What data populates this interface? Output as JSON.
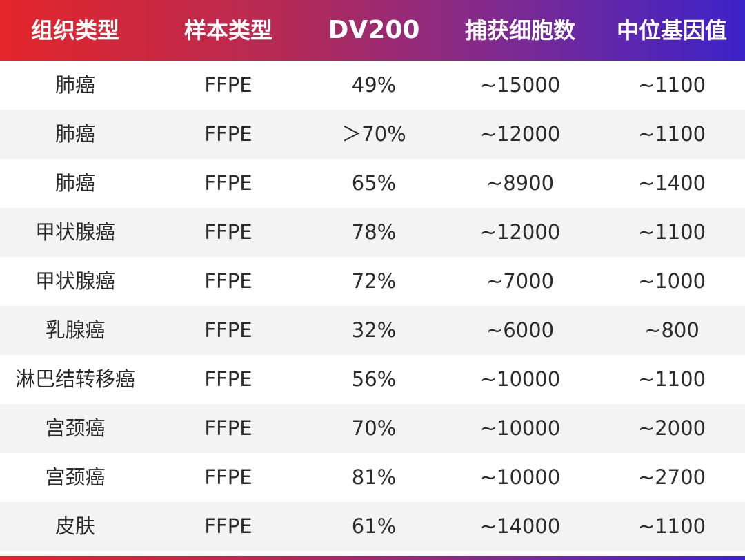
{
  "header": [
    "组织类型",
    "样本类型",
    "DV200",
    "捕获细胞数",
    "中位基因值"
  ],
  "rows": [
    [
      "肺癌",
      "FFPE",
      "49%",
      "~15000",
      "~1100"
    ],
    [
      "肺癌",
      "FFPE",
      "＞70%",
      "~12000",
      "~1100"
    ],
    [
      "肺癌",
      "FFPE",
      "65%",
      "~8900",
      "~1400"
    ],
    [
      "甲状腺癌",
      "FFPE",
      "78%",
      "~12000",
      "~1100"
    ],
    [
      "甲状腺癌",
      "FFPE",
      "72%",
      "~7000",
      "~1000"
    ],
    [
      "乳腺癌",
      "FFPE",
      "32%",
      "~6000",
      "~800"
    ],
    [
      "淋巴结转移癌",
      "FFPE",
      "56%",
      "~10000",
      "~1100"
    ],
    [
      "宫颈癌",
      "FFPE",
      "70%",
      "~10000",
      "~2000"
    ],
    [
      "宫颈癌",
      "FFPE",
      "81%",
      "~10000",
      "~2700"
    ],
    [
      "皮肤",
      "FFPE",
      "61%",
      "~14000",
      "~1100"
    ]
  ],
  "colors": {
    "header_gradient": [
      "#e3262a",
      "#b52a55",
      "#7a2a95",
      "#3b22c9"
    ],
    "row_alt": "#f3f3f3",
    "text": "#2b2b2b"
  }
}
